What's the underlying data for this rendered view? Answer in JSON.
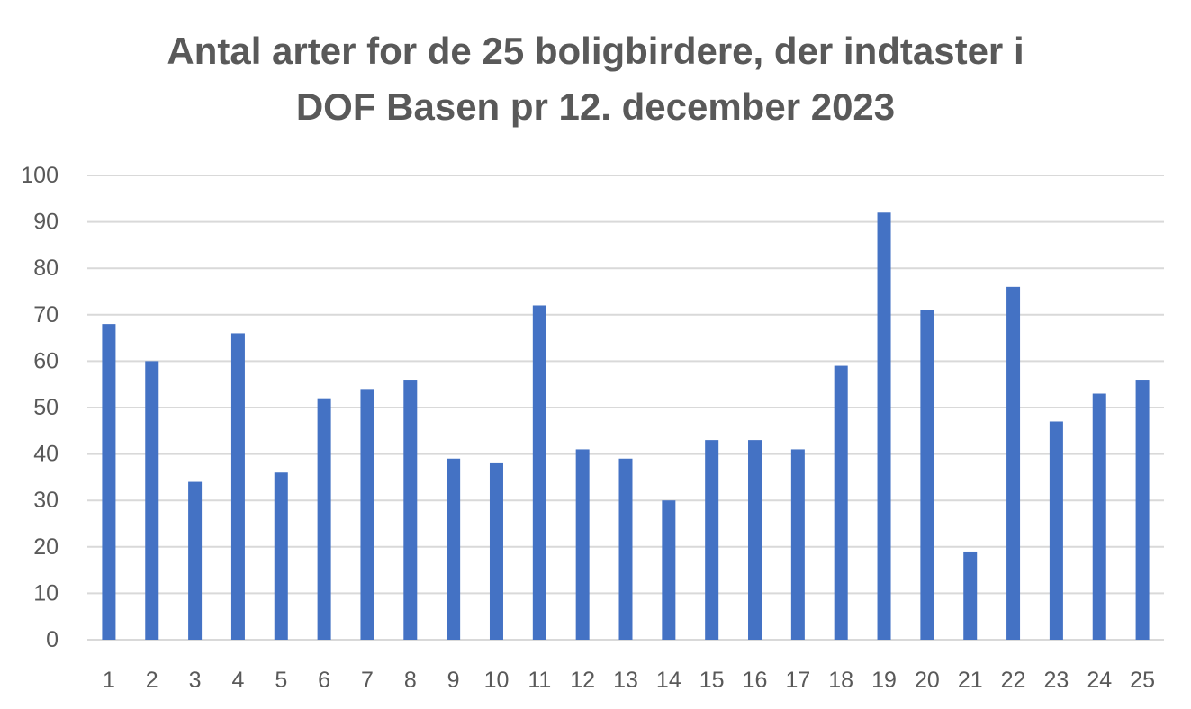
{
  "chart_data": {
    "type": "bar",
    "title_lines": [
      "Antal arter for de 25 boligbirdere, der indtaster i",
      "DOF Basen pr 12. december 2023"
    ],
    "xlabel": "",
    "ylabel": "",
    "categories": [
      "1",
      "2",
      "3",
      "4",
      "5",
      "6",
      "7",
      "8",
      "9",
      "10",
      "11",
      "12",
      "13",
      "14",
      "15",
      "16",
      "17",
      "18",
      "19",
      "20",
      "21",
      "22",
      "23",
      "24",
      "25"
    ],
    "values": [
      68,
      60,
      34,
      66,
      36,
      52,
      54,
      56,
      39,
      38,
      72,
      41,
      39,
      30,
      43,
      43,
      41,
      59,
      92,
      71,
      19,
      76,
      47,
      53,
      56
    ],
    "ylim": [
      0,
      100
    ],
    "yticks": [
      0,
      10,
      20,
      30,
      40,
      50,
      60,
      70,
      80,
      90,
      100
    ],
    "grid": true,
    "legend": "none",
    "colors": {
      "bar": "#4472C4",
      "grid": "#D9D9D9",
      "text": "#595959"
    }
  }
}
